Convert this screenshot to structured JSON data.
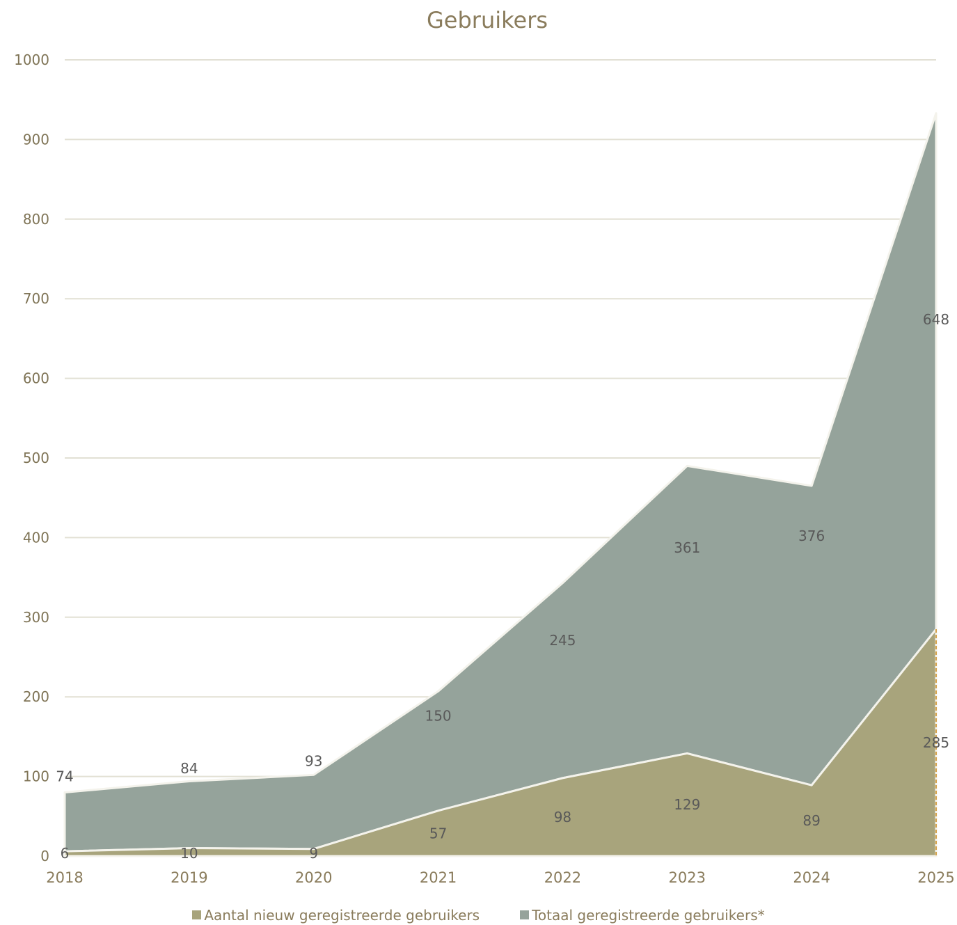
{
  "chart_data": {
    "type": "area",
    "title": "Gebruikers",
    "categories": [
      "2018",
      "2019",
      "2020",
      "2021",
      "2022",
      "2023",
      "2024",
      "2025"
    ],
    "ylim": [
      0,
      1000
    ],
    "yticks": [
      "0",
      "100",
      "200",
      "300",
      "400",
      "500",
      "600",
      "700",
      "800",
      "900",
      "1000"
    ],
    "stacked": true,
    "grid": true,
    "legend_position": "bottom",
    "series": [
      {
        "name": "Aantal nieuw geregistreerde gebruikers",
        "values": [
          6,
          10,
          9,
          57,
          98,
          129,
          89,
          285
        ],
        "labels": [
          "6",
          "10",
          "9",
          "57",
          "98",
          "129",
          "89",
          "285"
        ],
        "color": "#a8a47c"
      },
      {
        "name": "Totaal geregistreerde gebruikers*",
        "values": [
          74,
          84,
          93,
          150,
          245,
          361,
          376,
          648
        ],
        "labels": [
          "74",
          "84",
          "93",
          "150",
          "245",
          "361",
          "376",
          "648"
        ],
        "color": "#95a39b"
      }
    ]
  }
}
